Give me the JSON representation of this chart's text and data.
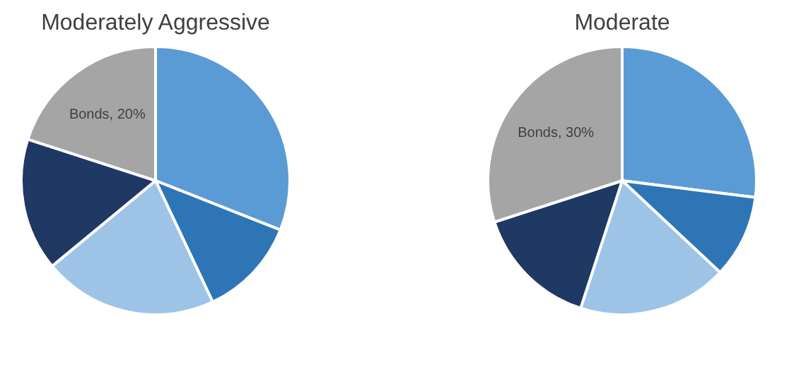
{
  "chart_data": [
    {
      "type": "pie",
      "title": "Moderately Aggressive",
      "categories": [
        null,
        null,
        null,
        null,
        null
      ],
      "values": [
        31,
        12,
        21,
        16,
        20
      ],
      "colors": [
        "#5b9bd5",
        "#2e75b6",
        "#9dc3e6",
        "#1f3864",
        "#a5a5a5"
      ],
      "value_labels": [
        null,
        null,
        null,
        null,
        "Bonds, 20%"
      ]
    },
    {
      "type": "pie",
      "title": "Moderate",
      "categories": [
        null,
        null,
        null,
        null,
        null
      ],
      "values": [
        27,
        10,
        18,
        15,
        30
      ],
      "colors": [
        "#5b9bd5",
        "#2e75b6",
        "#9dc3e6",
        "#1f3864",
        "#a5a5a5"
      ],
      "value_labels": [
        null,
        null,
        null,
        null,
        "Bonds, 30%"
      ]
    }
  ]
}
